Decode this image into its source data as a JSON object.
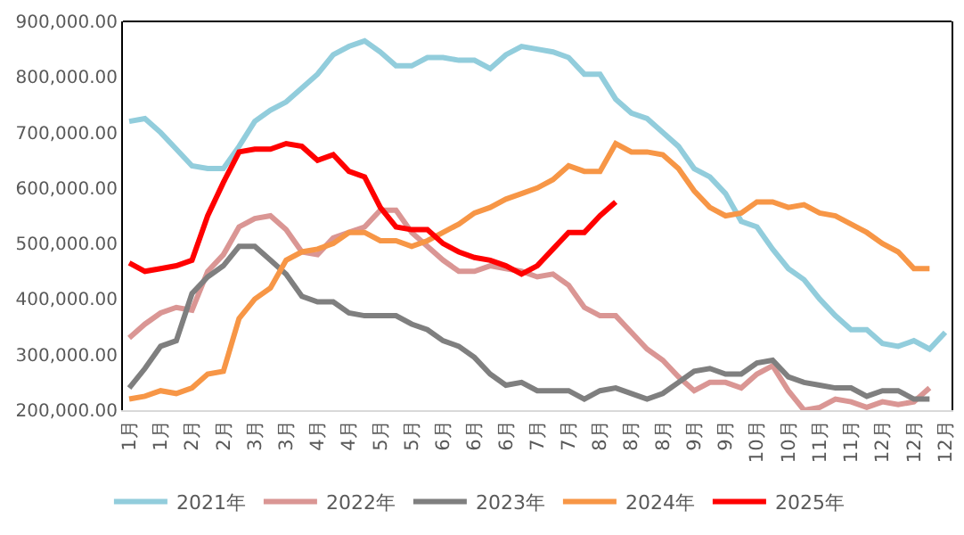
{
  "chart_data": {
    "type": "line",
    "categories": [
      "1月",
      null,
      "1月",
      null,
      "2月",
      null,
      "2月",
      null,
      "3月",
      null,
      "3月",
      null,
      "4月",
      null,
      "4月",
      null,
      "5月",
      null,
      "5月",
      null,
      "6月",
      null,
      "6月",
      null,
      "6月",
      null,
      "7月",
      null,
      "7月",
      null,
      "8月",
      null,
      "8月",
      null,
      "8月",
      null,
      "9月",
      null,
      "9月",
      null,
      "10月",
      null,
      "10月",
      null,
      "11月",
      null,
      "11月",
      null,
      "12月",
      null,
      "12月",
      null,
      "12月"
    ],
    "series": [
      {
        "name": "2021年",
        "color": "#92cddc",
        "values": [
          720000,
          725000,
          700000,
          670000,
          640000,
          635000,
          635000,
          675000,
          720000,
          740000,
          755000,
          780000,
          805000,
          840000,
          855000,
          865000,
          845000,
          820000,
          820000,
          835000,
          835000,
          830000,
          830000,
          815000,
          840000,
          855000,
          850000,
          845000,
          835000,
          805000,
          805000,
          760000,
          735000,
          725000,
          700000,
          675000,
          635000,
          620000,
          590000,
          540000,
          530000,
          490000,
          455000,
          435000,
          400000,
          370000,
          345000,
          345000,
          320000,
          315000,
          325000,
          310000,
          340000
        ]
      },
      {
        "name": "2022年",
        "color": "#da9694",
        "values": [
          330000,
          355000,
          375000,
          385000,
          380000,
          450000,
          480000,
          530000,
          545000,
          550000,
          525000,
          485000,
          480000,
          510000,
          520000,
          530000,
          560000,
          560000,
          520000,
          495000,
          470000,
          450000,
          450000,
          460000,
          455000,
          450000,
          440000,
          445000,
          425000,
          385000,
          370000,
          370000,
          340000,
          310000,
          290000,
          260000,
          235000,
          250000,
          250000,
          240000,
          265000,
          280000,
          235000,
          200000,
          205000,
          220000,
          215000,
          205000,
          215000,
          210000,
          215000,
          240000,
          null
        ]
      },
      {
        "name": "2023年",
        "color": "#7f7f7f",
        "values": [
          240000,
          275000,
          315000,
          325000,
          410000,
          440000,
          460000,
          495000,
          495000,
          470000,
          445000,
          405000,
          395000,
          395000,
          375000,
          370000,
          370000,
          370000,
          355000,
          345000,
          325000,
          315000,
          295000,
          265000,
          245000,
          250000,
          235000,
          235000,
          235000,
          220000,
          235000,
          240000,
          230000,
          220000,
          230000,
          250000,
          270000,
          275000,
          265000,
          265000,
          285000,
          290000,
          260000,
          250000,
          245000,
          240000,
          240000,
          225000,
          235000,
          235000,
          220000,
          220000,
          null
        ]
      },
      {
        "name": "2024年",
        "color": "#f79646",
        "values": [
          220000,
          225000,
          235000,
          230000,
          240000,
          265000,
          270000,
          365000,
          400000,
          420000,
          470000,
          485000,
          490000,
          500000,
          520000,
          520000,
          505000,
          505000,
          495000,
          505000,
          520000,
          535000,
          555000,
          565000,
          580000,
          590000,
          600000,
          615000,
          640000,
          630000,
          630000,
          680000,
          665000,
          665000,
          660000,
          635000,
          595000,
          565000,
          550000,
          555000,
          575000,
          575000,
          565000,
          570000,
          555000,
          550000,
          535000,
          520000,
          500000,
          485000,
          455000,
          455000,
          null
        ]
      },
      {
        "name": "2025年",
        "color": "#ff0000",
        "values": [
          465000,
          450000,
          455000,
          460000,
          470000,
          550000,
          610000,
          665000,
          670000,
          670000,
          680000,
          675000,
          650000,
          660000,
          630000,
          620000,
          565000,
          530000,
          525000,
          525000,
          500000,
          485000,
          475000,
          470000,
          460000,
          445000,
          460000,
          490000,
          520000,
          520000,
          550000,
          575000,
          null,
          null,
          null,
          null,
          null,
          null,
          null,
          null,
          null,
          null,
          null,
          null,
          null,
          null,
          null,
          null,
          null,
          null,
          null,
          null,
          null
        ]
      }
    ],
    "ylim": [
      200000,
      900000
    ],
    "yticks": [
      {
        "value": 200000,
        "label": "200,000.00"
      },
      {
        "value": 300000,
        "label": "300,000.00"
      },
      {
        "value": 400000,
        "label": "400,000.00"
      },
      {
        "value": 500000,
        "label": "500,000.00"
      },
      {
        "value": 600000,
        "label": "600,000.00"
      },
      {
        "value": 700000,
        "label": "700,000.00"
      },
      {
        "value": 800000,
        "label": "800,000.00"
      },
      {
        "value": 900000,
        "label": "900,000.00"
      }
    ],
    "legend": "bottom",
    "marker": "none",
    "line_style": "solid"
  }
}
